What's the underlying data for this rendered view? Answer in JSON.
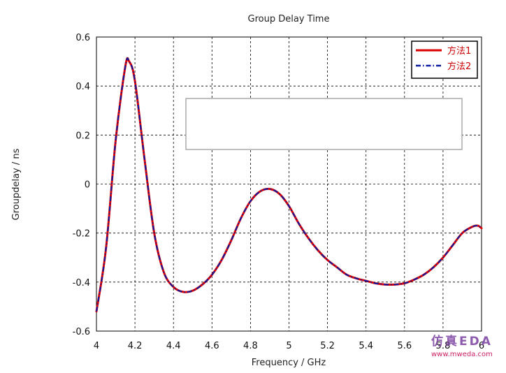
{
  "chart_data": {
    "type": "line",
    "title": "Group Delay Time",
    "xlabel": "Frequency / GHz",
    "ylabel": "Groupdelay  / ns",
    "xlim": [
      4,
      6
    ],
    "ylim": [
      -0.6,
      0.6
    ],
    "xticks": [
      "4",
      "4.2",
      "4.4",
      "4.6",
      "4.8",
      "5",
      "5.2",
      "5.4",
      "5.6",
      "5.8",
      "6"
    ],
    "yticks": [
      "0.6",
      "0.4",
      "0.2",
      "0",
      "-0.2",
      "-0.4",
      "-0.6"
    ],
    "grid": true,
    "legend_position": "top-right",
    "series": [
      {
        "name": "方法1",
        "color": "#dd0000",
        "style": "solid",
        "x": [
          4.0,
          4.05,
          4.1,
          4.15,
          4.17,
          4.2,
          4.25,
          4.3,
          4.35,
          4.4,
          4.45,
          4.5,
          4.55,
          4.6,
          4.65,
          4.7,
          4.75,
          4.8,
          4.85,
          4.9,
          4.95,
          5.0,
          5.05,
          5.1,
          5.15,
          5.2,
          5.25,
          5.3,
          5.35,
          5.4,
          5.45,
          5.5,
          5.55,
          5.6,
          5.65,
          5.7,
          5.75,
          5.8,
          5.85,
          5.9,
          5.95,
          5.98,
          6.0
        ],
        "y": [
          -0.52,
          -0.26,
          0.18,
          0.48,
          0.5,
          0.42,
          0.1,
          -0.2,
          -0.36,
          -0.42,
          -0.44,
          -0.435,
          -0.41,
          -0.37,
          -0.31,
          -0.23,
          -0.14,
          -0.07,
          -0.03,
          -0.02,
          -0.04,
          -0.09,
          -0.16,
          -0.22,
          -0.27,
          -0.31,
          -0.34,
          -0.37,
          -0.385,
          -0.395,
          -0.405,
          -0.41,
          -0.41,
          -0.405,
          -0.39,
          -0.37,
          -0.34,
          -0.3,
          -0.25,
          -0.2,
          -0.175,
          -0.17,
          -0.18
        ]
      },
      {
        "name": "方法2",
        "color": "#0a1aa0",
        "style": "dashdot",
        "x": [
          4.0,
          4.05,
          4.1,
          4.15,
          4.17,
          4.2,
          4.25,
          4.3,
          4.35,
          4.4,
          4.45,
          4.5,
          4.55,
          4.6,
          4.65,
          4.7,
          4.75,
          4.8,
          4.85,
          4.9,
          4.95,
          5.0,
          5.05,
          5.1,
          5.15,
          5.2,
          5.25,
          5.3,
          5.35,
          5.4,
          5.45,
          5.5,
          5.55,
          5.6,
          5.65,
          5.7,
          5.75,
          5.8,
          5.85,
          5.9,
          5.95,
          5.98,
          6.0
        ],
        "y": [
          -0.52,
          -0.26,
          0.18,
          0.48,
          0.5,
          0.42,
          0.1,
          -0.2,
          -0.36,
          -0.42,
          -0.44,
          -0.435,
          -0.41,
          -0.37,
          -0.31,
          -0.23,
          -0.14,
          -0.07,
          -0.03,
          -0.02,
          -0.04,
          -0.09,
          -0.16,
          -0.22,
          -0.27,
          -0.31,
          -0.34,
          -0.37,
          -0.385,
          -0.395,
          -0.405,
          -0.41,
          -0.41,
          -0.405,
          -0.39,
          -0.37,
          -0.34,
          -0.3,
          -0.25,
          -0.2,
          -0.175,
          -0.17,
          -0.18
        ]
      }
    ]
  },
  "watermark": {
    "logo_text": "仿真EDA",
    "url": "www.mweda.com"
  }
}
